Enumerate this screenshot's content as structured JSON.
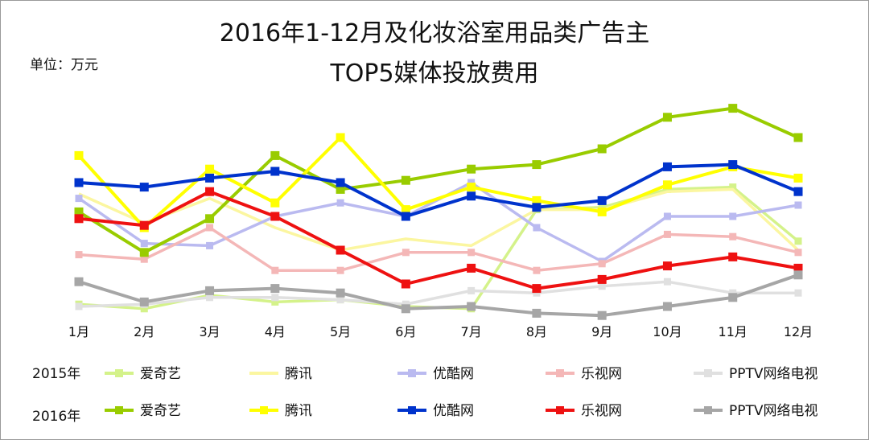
{
  "title_line1": "2016年1-12月及化妆浴室用品类广告主",
  "title_line2": "TOP5媒体投放费用",
  "unit_label": "单位：万元",
  "chart_data": {
    "type": "line",
    "x": [
      "1月",
      "2月",
      "3月",
      "4月",
      "5月",
      "6月",
      "7月",
      "8月",
      "9月",
      "10月",
      "11月",
      "12月"
    ],
    "ylim": [
      0,
      100
    ],
    "grid": false,
    "legend_placement": "bottom",
    "series": [
      {
        "name": "爱奇艺",
        "year": "2015年",
        "color": "#d4f28a",
        "marker": "square",
        "values": [
          6,
          4,
          10,
          7,
          8,
          5,
          4,
          48,
          49,
          57,
          58,
          34
        ]
      },
      {
        "name": "腾讯",
        "year": "2015年",
        "color": "#fbf6a0",
        "marker": "none",
        "values": [
          55,
          42,
          53,
          40,
          30,
          35,
          32,
          48,
          48,
          56,
          57,
          30
        ]
      },
      {
        "name": "优酷网",
        "year": "2015年",
        "color": "#babaf0",
        "marker": "square",
        "values": [
          53,
          33,
          32,
          45,
          51,
          45,
          60,
          40,
          25,
          45,
          45,
          50
        ]
      },
      {
        "name": "乐视网",
        "year": "2015年",
        "color": "#f4b7b7",
        "marker": "square",
        "values": [
          28,
          26,
          40,
          21,
          21,
          29,
          29,
          21,
          24,
          37,
          36,
          29
        ]
      },
      {
        "name": "PPTV网络电视",
        "year": "2015年",
        "color": "#e0e0e0",
        "marker": "square",
        "values": [
          5,
          6,
          9,
          9,
          8,
          6,
          12,
          11,
          14,
          16,
          11,
          11
        ]
      },
      {
        "name": "爱奇艺",
        "year": "2016年",
        "color": "#99cc00",
        "marker": "square",
        "values": [
          47,
          29,
          44,
          72,
          57,
          61,
          66,
          68,
          75,
          89,
          93,
          80
        ]
      },
      {
        "name": "腾讯",
        "year": "2016年",
        "color": "#ffff00",
        "marker": "square",
        "values": [
          72,
          40,
          66,
          51,
          80,
          48,
          58,
          52,
          47,
          59,
          67,
          62
        ]
      },
      {
        "name": "优酷网",
        "year": "2016年",
        "color": "#0033cc",
        "marker": "square",
        "values": [
          60,
          58,
          62,
          65,
          60,
          45,
          54,
          49,
          52,
          67,
          68,
          56
        ]
      },
      {
        "name": "乐视网",
        "year": "2016年",
        "color": "#ee1111",
        "marker": "square",
        "values": [
          44,
          41,
          56,
          45,
          30,
          15,
          22,
          13,
          17,
          23,
          27,
          22
        ]
      },
      {
        "name": "PPTV网络电视",
        "year": "2016年",
        "color": "#a6a6a6",
        "marker": "square",
        "values": [
          16,
          7,
          12,
          13,
          11,
          4,
          5,
          2,
          1,
          5,
          9,
          19
        ]
      }
    ]
  },
  "legend": {
    "year_2015": "2015年",
    "year_2016": "2016年"
  }
}
